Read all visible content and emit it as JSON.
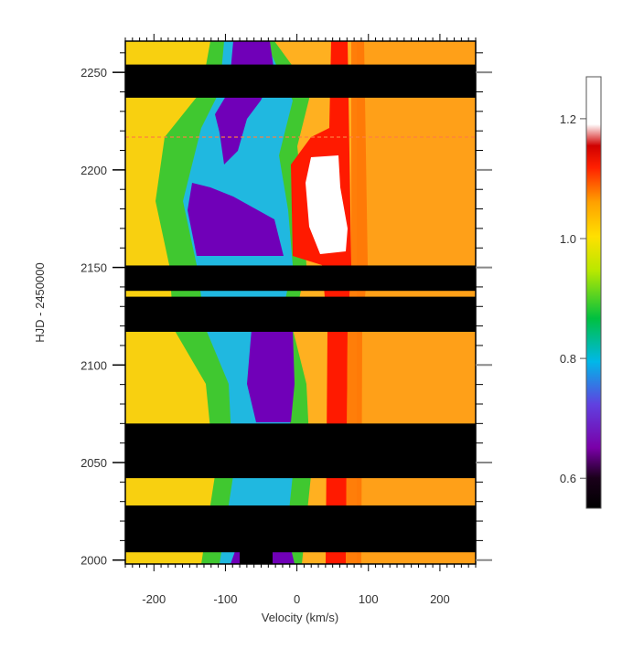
{
  "chart_data": {
    "type": "heatmap",
    "title": "",
    "xlabel": "Velocity (km/s)",
    "ylabel": "HJD - 2450000",
    "xlim": [
      -240,
      250
    ],
    "ylim": [
      1998,
      2266
    ],
    "x_ticks": [
      -200,
      -100,
      0,
      100,
      200
    ],
    "x_tick_labels": [
      "-200",
      "-100",
      "0",
      "100",
      "200"
    ],
    "y_ticks": [
      2000,
      2050,
      2100,
      2150,
      2200,
      2250
    ],
    "y_tick_labels": [
      "2000",
      "2050",
      "2100",
      "2150",
      "2200",
      "2250"
    ],
    "colorbar": {
      "range": [
        0.55,
        1.27
      ],
      "ticks": [
        0.6,
        0.8,
        1.0,
        1.2
      ],
      "tick_labels": [
        "0.6",
        "0.8",
        "1.0",
        "1.2"
      ],
      "colors": [
        "#000000",
        "#7a00a8",
        "#6040e0",
        "#00b8e8",
        "#00c040",
        "#ffff00",
        "#ff9000",
        "#ff1000",
        "#ffffff"
      ]
    },
    "data_gaps_hjd": [
      [
        2237,
        2254
      ],
      [
        2138,
        2151
      ],
      [
        2117,
        2135
      ],
      [
        2042,
        2070
      ],
      [
        2004,
        2028
      ]
    ],
    "features": [
      {
        "label": "absorption trough",
        "velocity_kms": -40,
        "min_intensity": 0.6
      },
      {
        "label": "emission peak",
        "velocity_kms": 55,
        "max_intensity": 1.25,
        "hjd_range": [
          2168,
          2206
        ]
      }
    ],
    "grid": false,
    "legend": "colorbar-right"
  }
}
